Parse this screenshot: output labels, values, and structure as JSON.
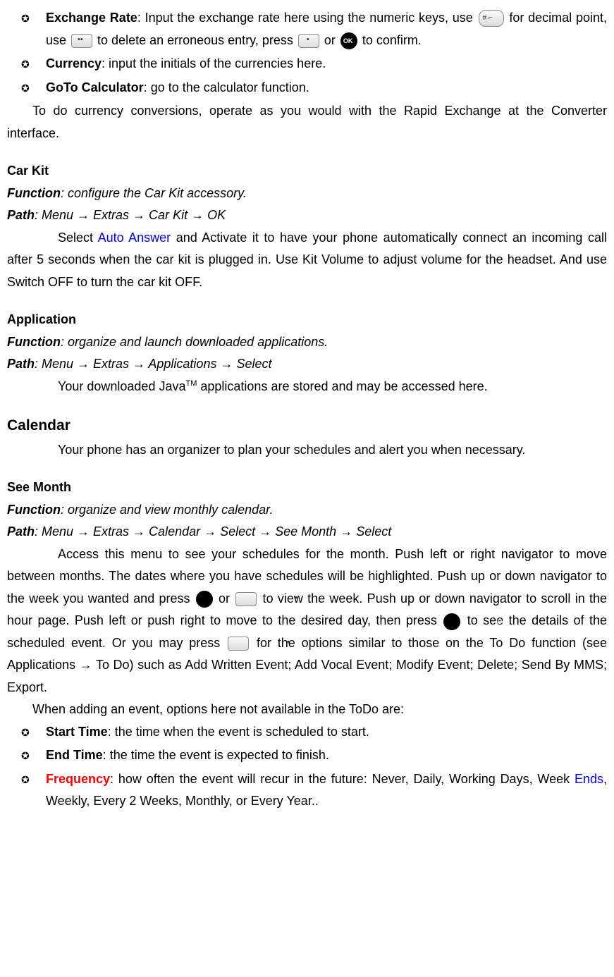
{
  "bullets_top": [
    {
      "label": "Exchange Rate",
      "text_parts": {
        "p1": ": Input the exchange rate here using the numeric keys, use ",
        "p2": " for decimal point, use ",
        "p3": " to delete an erroneous entry, press ",
        "p4": " or ",
        "p5": " to confirm."
      }
    },
    {
      "label": "Currency",
      "text": ": input the initials of the currencies here."
    },
    {
      "label": "GoTo Calculator",
      "text": ": go to the calculator function."
    }
  ],
  "para_converter": "To do currency conversions, operate as you would with the Rapid Exchange at the Converter interface.",
  "carkit": {
    "title": "Car Kit",
    "func_label": "Function",
    "func_text": ": configure the Car Kit accessory.",
    "path_label": "Path",
    "path_text": ": Menu → Extras → Car Kit → OK",
    "body_p1": "Select ",
    "auto_answer": "Auto Answer",
    "body_p2": " and Activate it to have your phone automatically connect an incoming call after 5 seconds when the car kit is plugged in. Use Kit Volume to adjust volume for the headset. And use Switch OFF to turn the car kit OFF."
  },
  "application": {
    "title": "Application",
    "func_label": "Function",
    "func_text": ": organize and launch downloaded applications.",
    "path_label": "Path",
    "path_text": ": Menu → Extras → Applications → Select",
    "body_p1": "Your downloaded Java",
    "tm": "TM",
    "body_p2": " applications are stored and may be accessed here."
  },
  "calendar": {
    "title": "Calendar",
    "body": "Your phone has an organizer to plan your schedules and alert you when necessary."
  },
  "seemonth": {
    "title": "See Month",
    "func_label": "Function",
    "func_text": ": organize and view monthly calendar.",
    "path_label": "Path",
    "path_text": ": Menu → Extras → Calendar → Select → See Month → Select",
    "body_p1": "Access this menu to see your schedules for the month. Push left or right navigator to move between months. The dates where you have schedules will be highlighted. Push up or down navigator to the week you wanted and press ",
    "body_p2": " or ",
    "body_p3": " to view the week. Push up or down navigator to scroll in the hour page. Push left or push right to move to the desired day, then press ",
    "body_p4": " to see the details of the scheduled event.  Or you may press ",
    "body_p5": " for the options similar to those on the To Do function (see Applications → To Do) such as Add Written Event; Add Vocal Event; Modify Event; Delete; Send By MMS; Export.",
    "body2": "When adding an event, options here not available in the ToDo are:"
  },
  "bullets_bottom": [
    {
      "label": "Start Time",
      "text": ": the time when the event is scheduled to start."
    },
    {
      "label": "End Time",
      "text": ": the time the event is expected to finish."
    },
    {
      "label": "Frequency",
      "text_p1": ": how often the event will recur in the future: Never, Daily, Working Days, Week ",
      "ends": "Ends",
      "text_p2": ", Weekly, Every 2 Weeks, Monthly, or Every Year.."
    }
  ]
}
